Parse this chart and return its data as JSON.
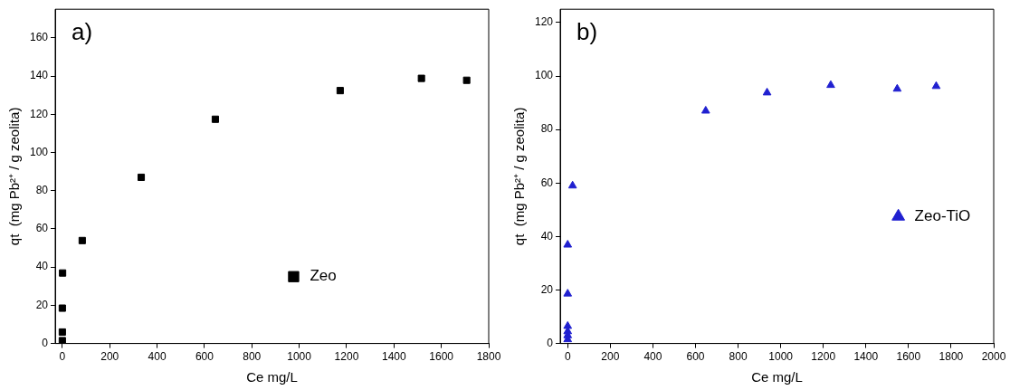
{
  "chart_data": [
    {
      "type": "scatter",
      "annotations": [
        "a)"
      ],
      "xlabel": "Ce mg/L",
      "ylabel": "qt  (mg Pb²⁺ / g zeolita)",
      "xlim": [
        -30,
        1800
      ],
      "ylim": [
        0,
        175
      ],
      "xticks": [
        0,
        200,
        400,
        600,
        800,
        1000,
        1200,
        1400,
        1600,
        1800
      ],
      "yticks": [
        0,
        20,
        40,
        60,
        80,
        100,
        120,
        140,
        160
      ],
      "grid": false,
      "legend": "bottom right",
      "marker": "square",
      "series": [
        {
          "name": "Zeo",
          "color": "#000000",
          "x": [
            0,
            null,
            null,
            0,
            0,
            1,
            84,
            333,
            646,
            1173,
            1516,
            1707
          ],
          "values": [
            1.5,
            null,
            null,
            6,
            18.5,
            36.9,
            53.9,
            87,
            117.4,
            132.4,
            138.8,
            137.8
          ]
        }
      ]
    },
    {
      "type": "scatter",
      "annotations": [
        "b)"
      ],
      "xlabel": "Ce mg/L",
      "ylabel": "qt  (mg Pb²⁺ / g zeolita)",
      "xlim": [
        -35,
        2000
      ],
      "ylim": [
        0,
        125
      ],
      "xticks": [
        0,
        200,
        400,
        600,
        800,
        1000,
        1200,
        1400,
        1600,
        1800,
        2000
      ],
      "yticks": [
        0,
        20,
        40,
        60,
        80,
        100,
        120
      ],
      "grid": false,
      "legend": "right",
      "marker": "triangle",
      "series": [
        {
          "name": "Zeo-TiO",
          "color": "#2020d0",
          "x": [
            0,
            0,
            0,
            0,
            0,
            0,
            23,
            648,
            936,
            1235,
            1547,
            1730
          ],
          "values": [
            1.5,
            3,
            4.5,
            6.5,
            18.6,
            36.9,
            59,
            87,
            93.8,
            96.6,
            95.2,
            96.2
          ]
        }
      ]
    }
  ]
}
